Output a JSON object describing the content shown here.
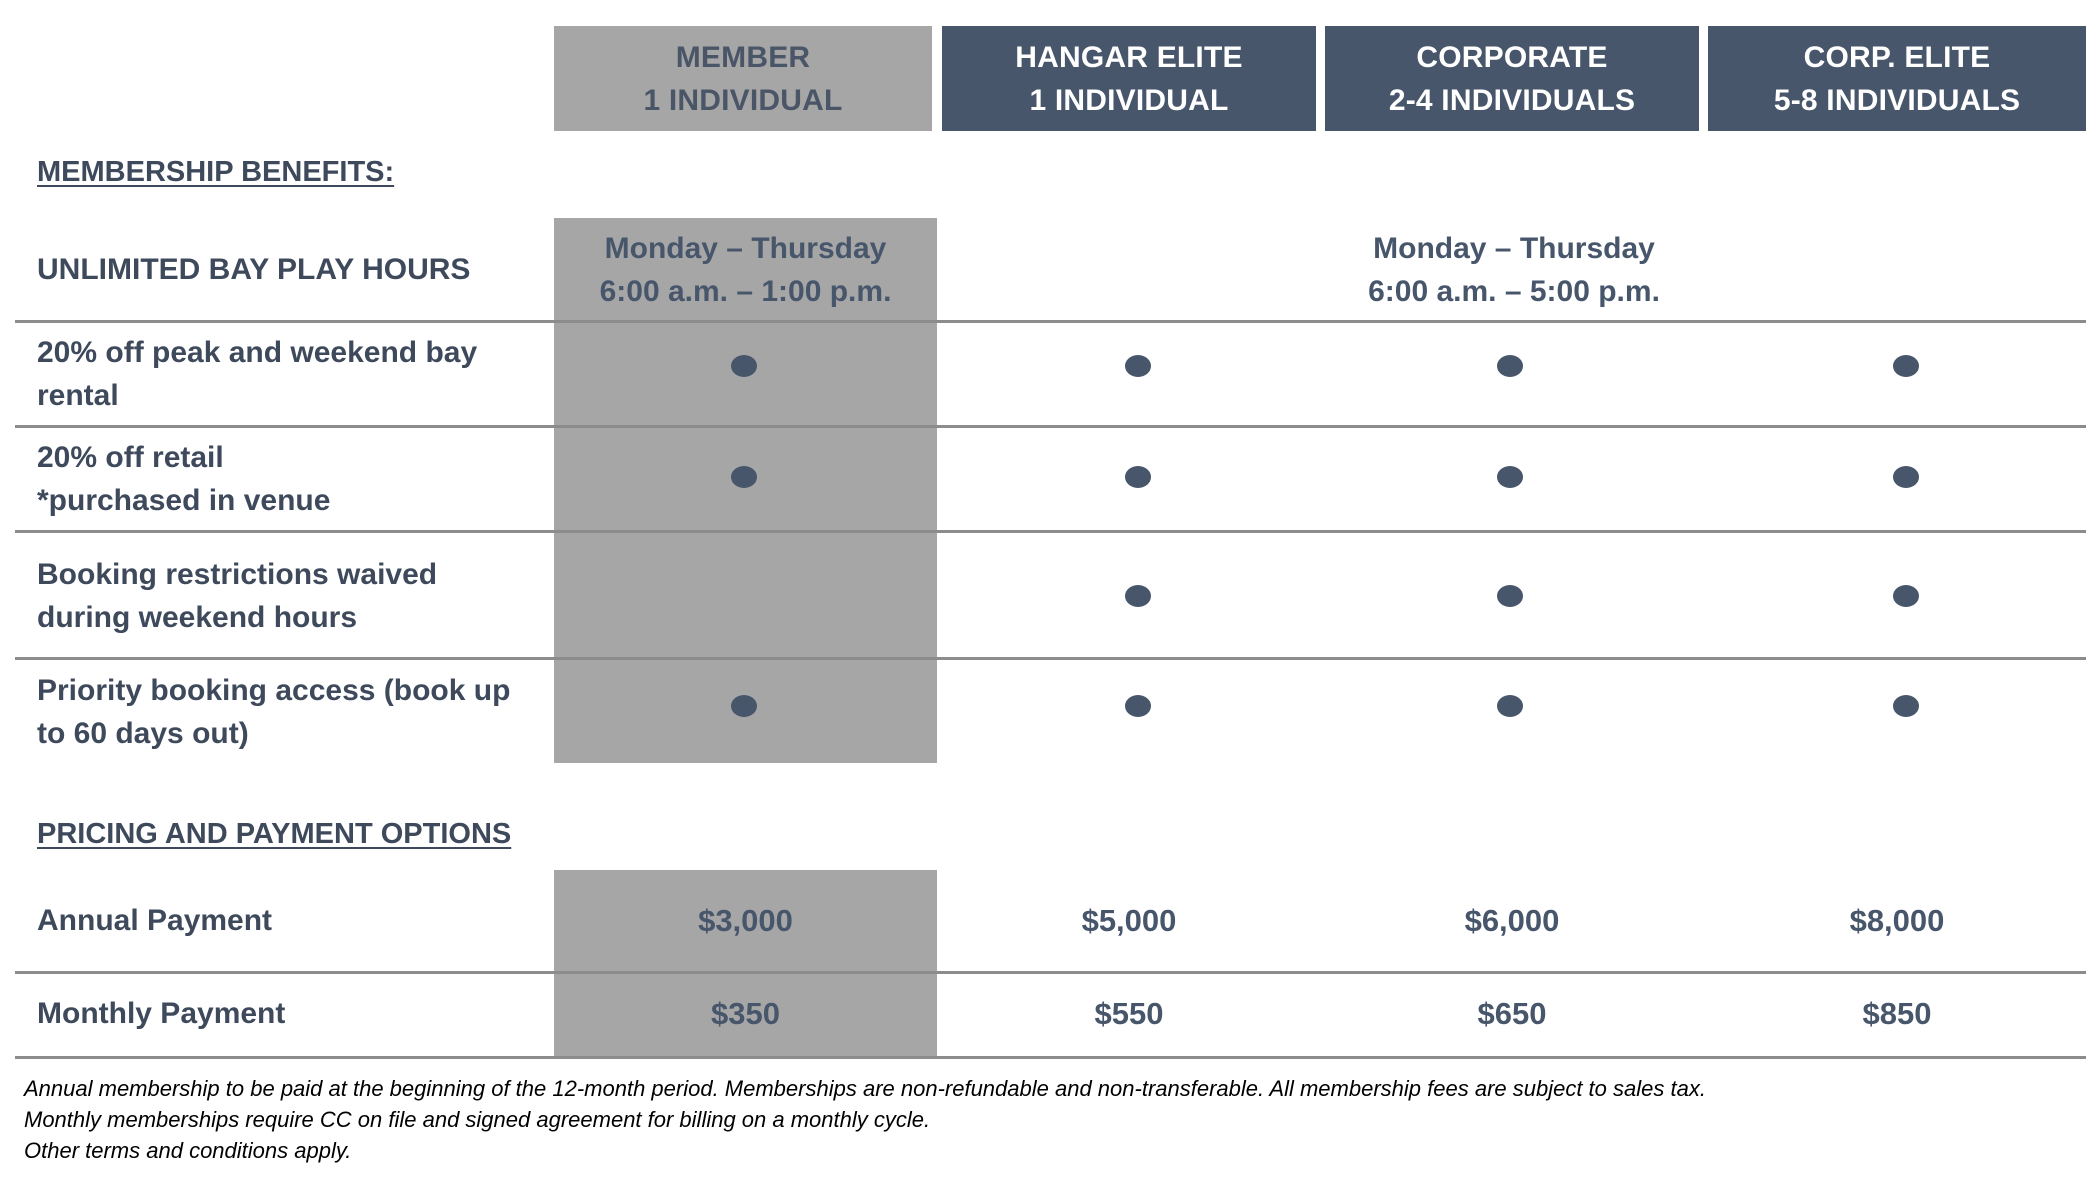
{
  "plans": [
    {
      "name": "MEMBER",
      "size": "1 INDIVIDUAL"
    },
    {
      "name": "HANGAR ELITE",
      "size": "1 INDIVIDUAL"
    },
    {
      "name": "CORPORATE",
      "size": "2-4 INDIVIDUALS"
    },
    {
      "name": "CORP. ELITE",
      "size": "5-8 INDIVIDUALS"
    }
  ],
  "benefits": {
    "title": "MEMBERSHIP BENEFITS:",
    "hours": {
      "label": "UNLIMITED BAY PLAY HOURS",
      "member": {
        "days": "Monday  – Thursday",
        "time": "6:00 a.m. – 1:00 p.m."
      },
      "others": {
        "days": "Monday  – Thursday",
        "time": "6:00 a.m. – 5:00 p.m."
      }
    },
    "rows": [
      {
        "label_1": "20% off peak and weekend bay",
        "label_2": "rental",
        "included": [
          true,
          true,
          true,
          true
        ]
      },
      {
        "label_1": "20% off retail",
        "label_2": "*purchased in venue",
        "included": [
          true,
          true,
          true,
          true
        ]
      },
      {
        "label_1": "Booking restrictions waived",
        "label_2": "during weekend hours",
        "included": [
          false,
          true,
          true,
          true
        ]
      },
      {
        "label_1": "Priority booking access (book up",
        "label_2": "to 60 days out)",
        "included": [
          true,
          true,
          true,
          true
        ]
      }
    ]
  },
  "pricing": {
    "title": "PRICING AND PAYMENT OPTIONS",
    "annual": {
      "label": "Annual Payment",
      "prices": [
        "$3,000",
        "$5,000",
        "$6,000",
        "$8,000"
      ]
    },
    "monthly": {
      "label": "Monthly Payment",
      "prices": [
        "$350",
        "$550",
        "$650",
        "$850"
      ]
    }
  },
  "footnotes": [
    "Annual membership to be paid at the beginning of the 12-month period. Memberships are non-refundable and non-transferable. All membership fees are subject to sales tax.",
    "Monthly memberships require CC on file and signed agreement for billing on a monthly cycle.",
    "Other terms and conditions apply."
  ],
  "colors": {
    "member_grey": "#a6a6a6",
    "header_navy": "#47566b",
    "text_navy": "#3e4a5c"
  }
}
